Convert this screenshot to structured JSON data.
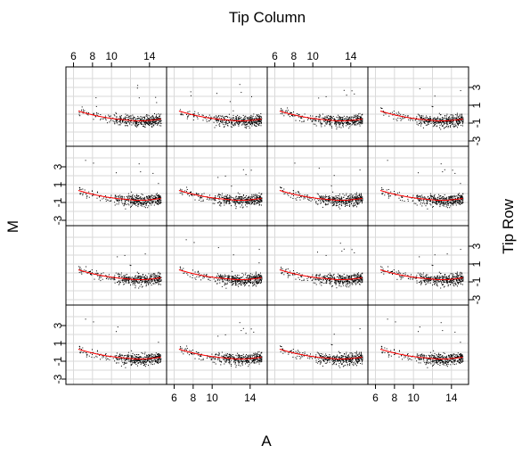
{
  "chart_data": {
    "type": "scatter",
    "title": "Tip Column",
    "xlabel": "A",
    "ylabel": "M",
    "right_label": "Tip Row",
    "layout": {
      "rows": 4,
      "cols": 4
    },
    "x_ticks": [
      6,
      8,
      10,
      14
    ],
    "y_ticks": [
      -3,
      -1,
      1,
      3
    ],
    "xlim": [
      5.2,
      15.8
    ],
    "ylim": [
      -3.6,
      5.3
    ],
    "grid": true,
    "colors": {
      "points": "#000000",
      "loess": "#ff0000",
      "grid": "#d9d9d9",
      "frame": "#000000"
    },
    "trend_points": [
      [
        6.5,
        0.35
      ],
      [
        7.5,
        0.05
      ],
      [
        8.5,
        -0.2
      ],
      [
        9.5,
        -0.4
      ],
      [
        10.5,
        -0.55
      ],
      [
        11.5,
        -0.65
      ],
      [
        12.5,
        -0.75
      ],
      [
        13.5,
        -0.75
      ],
      [
        14.5,
        -0.65
      ],
      [
        15.2,
        -0.55
      ]
    ],
    "point_cloud": {
      "main_x_range": [
        10,
        15.2
      ],
      "main_center_x": 12.8,
      "main_center_y": -0.7,
      "main_spread_y": 0.55,
      "tail_x_range": [
        6.5,
        10
      ],
      "tail_center_y": 0.1,
      "points_per_panel": 420
    }
  }
}
